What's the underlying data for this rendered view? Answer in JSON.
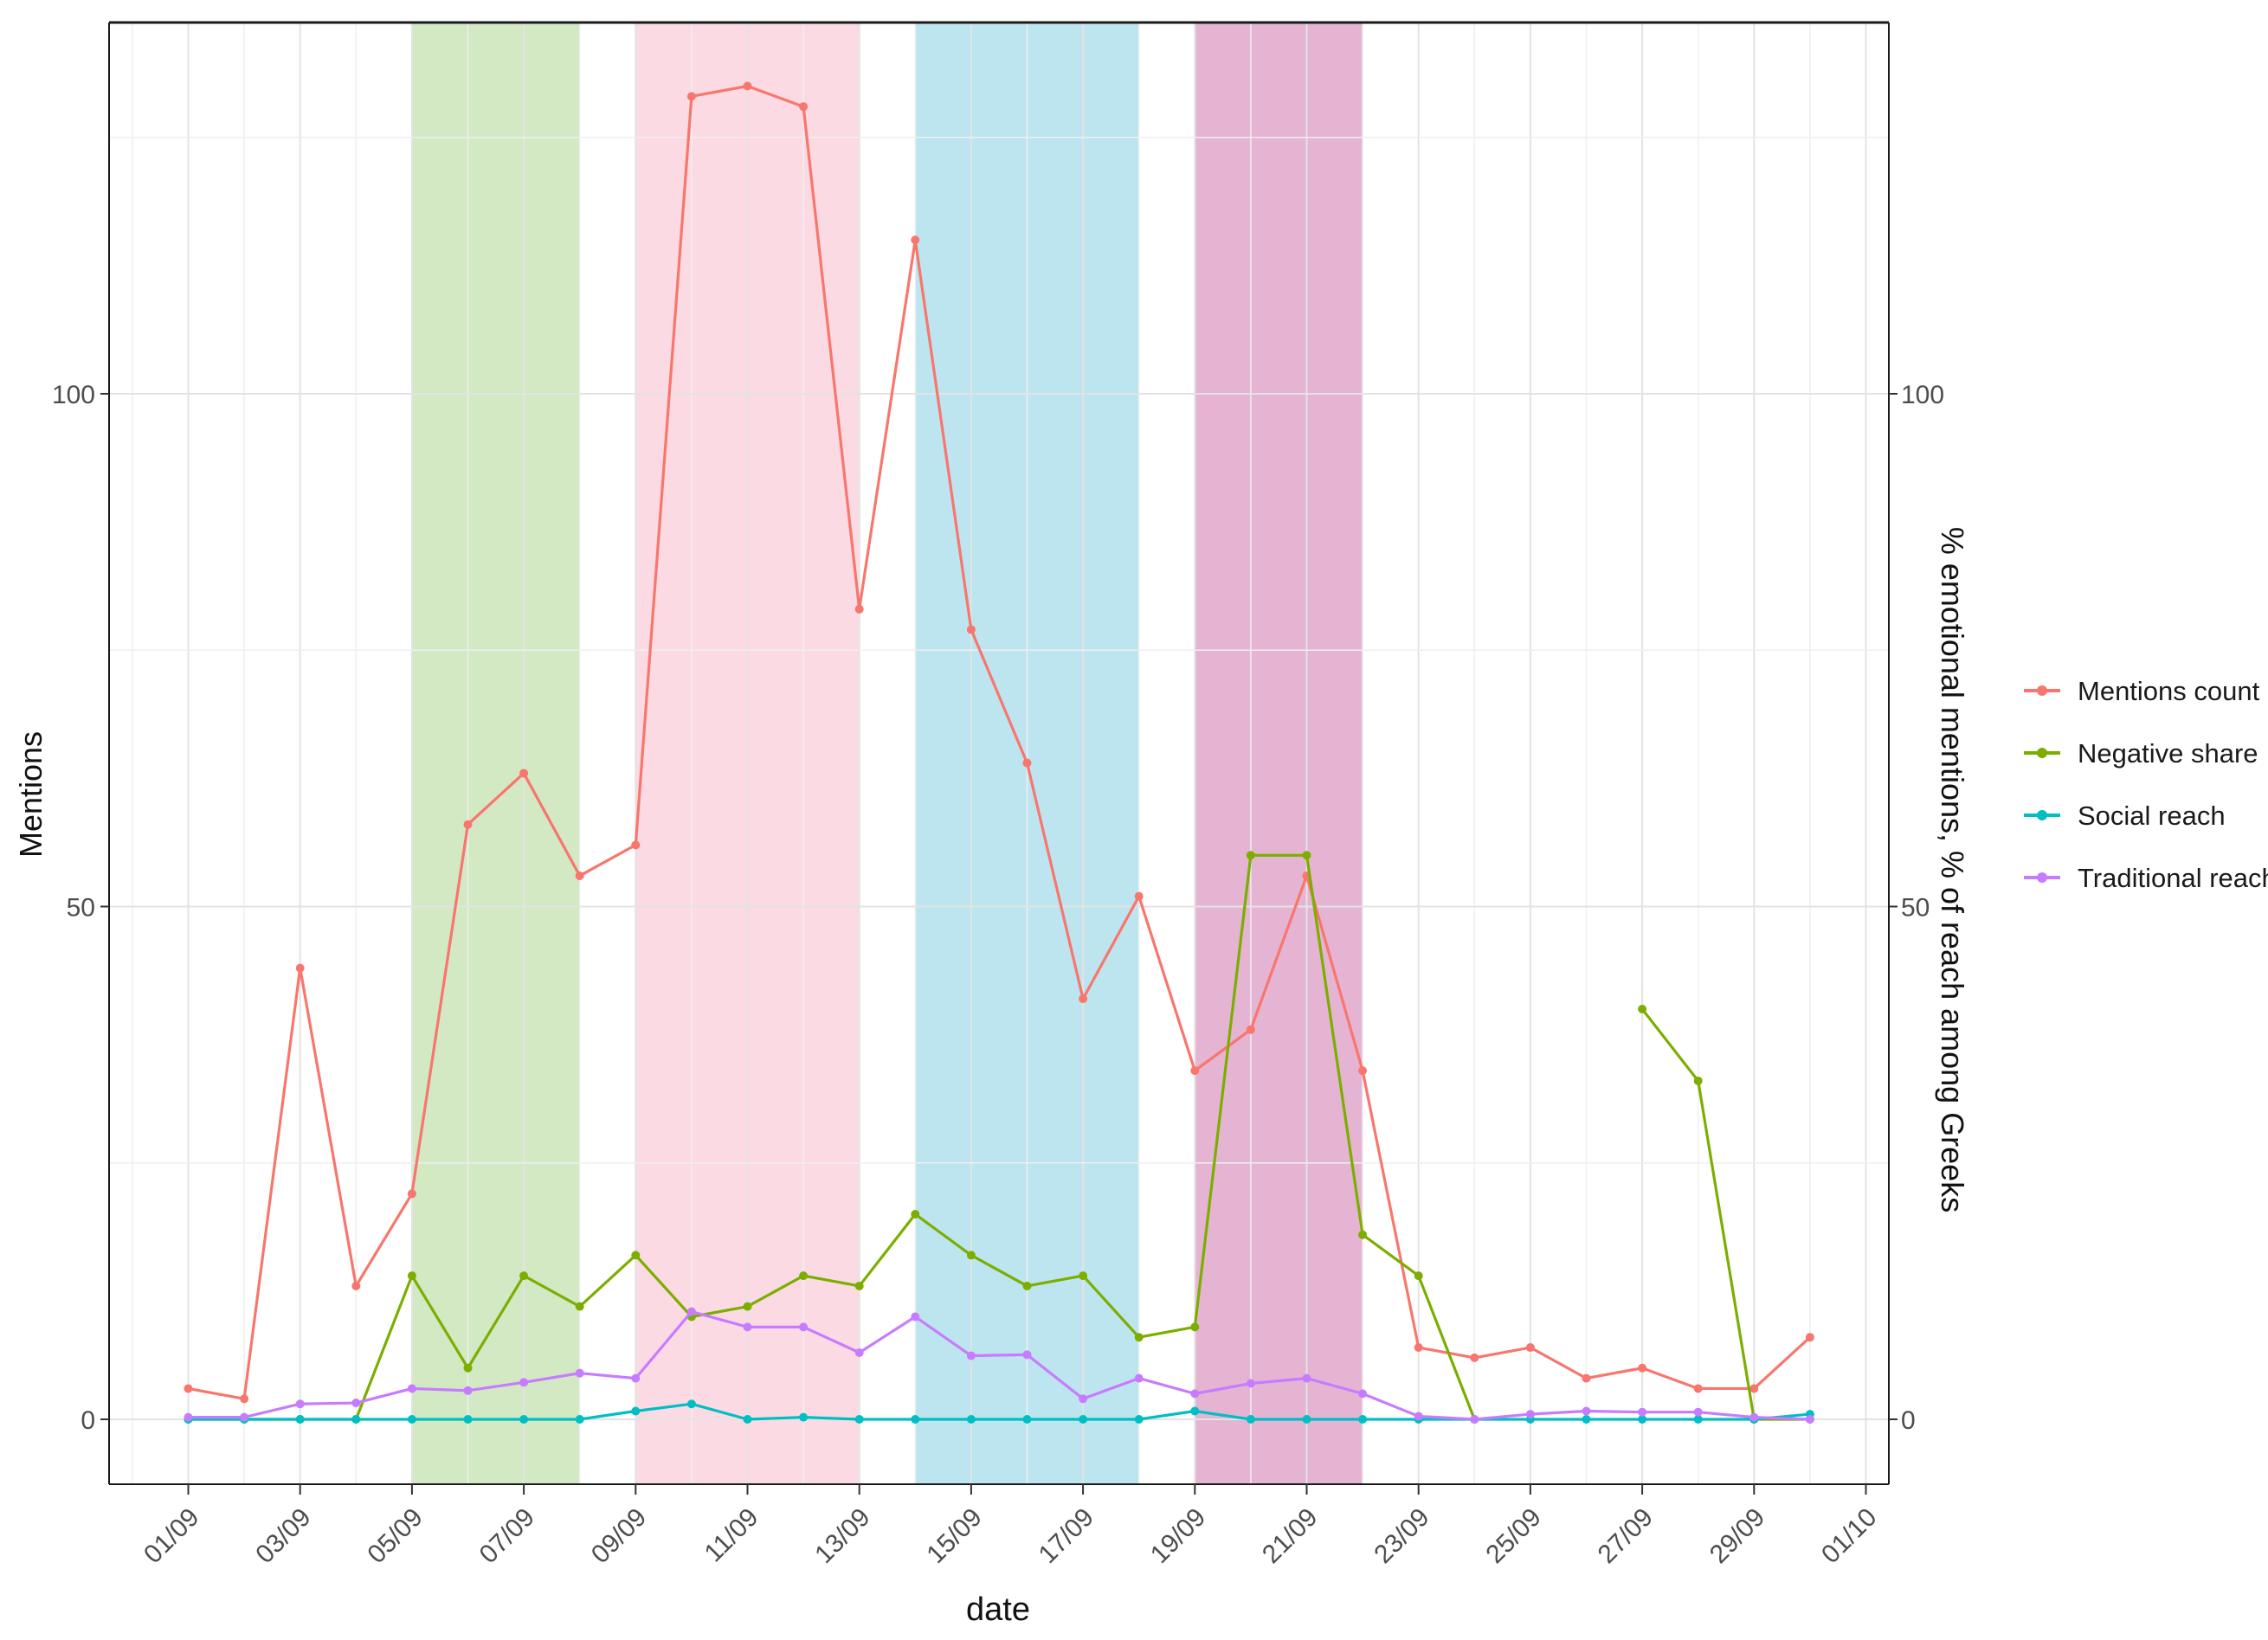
{
  "chart_data": {
    "type": "line",
    "xlabel": "date",
    "ylabel": "Mentions",
    "ylabel_right": "% emotional mentions, % of reach among Greeks",
    "x_tick_labels": [
      "01/09",
      "03/09",
      "05/09",
      "07/09",
      "09/09",
      "11/09",
      "13/09",
      "15/09",
      "17/09",
      "19/09",
      "21/09",
      "23/09",
      "25/09",
      "27/09",
      "29/09",
      "01/10"
    ],
    "y_ticks": [
      0,
      50,
      100
    ],
    "y_tick_labels": [
      "0",
      "50",
      "100"
    ],
    "ylim": [
      -6.5,
      135
    ],
    "xlim": [
      "31/08",
      "01/10"
    ],
    "grid": true,
    "legend_position": "right",
    "shaded_periods": [
      {
        "start": "05/09",
        "end": "08/09",
        "color": "#a6d48a",
        "opacity": 0.5
      },
      {
        "start": "09/09",
        "end": "13/09",
        "color": "#f7b6c8",
        "opacity": 0.5
      },
      {
        "start": "14/09",
        "end": "18/09",
        "color": "#7ccbe0",
        "opacity": 0.5
      },
      {
        "start": "19/09",
        "end": "22/09",
        "color": "#cc6aa8",
        "opacity": 0.5
      }
    ],
    "series": [
      {
        "name": "Mentions count",
        "color": "#f8766d",
        "values": [
          3,
          2,
          44,
          13,
          22,
          58,
          63,
          53,
          56,
          129,
          130,
          128,
          79,
          115,
          77,
          64,
          41,
          51,
          34,
          38,
          53,
          34,
          7,
          6,
          7,
          4,
          5,
          3,
          3,
          8
        ]
      },
      {
        "name": "Negative share",
        "color": "#7cae00",
        "values": [
          0,
          0,
          0,
          0,
          14,
          5,
          14,
          11,
          16,
          10,
          11,
          14,
          13,
          20,
          16,
          13,
          14,
          8,
          9,
          55,
          55,
          18,
          14,
          0,
          null,
          null,
          40,
          33,
          0,
          0
        ]
      },
      {
        "name": "Social reach",
        "color": "#00bfc4",
        "values": [
          0,
          0,
          0,
          0,
          0,
          0,
          0,
          0,
          0.8,
          1.5,
          0,
          0.2,
          0,
          0,
          0,
          0,
          0,
          0,
          0.8,
          0,
          0,
          0,
          0,
          0,
          0,
          0,
          0,
          0,
          0,
          0.5
        ]
      },
      {
        "name": "Traditional reach",
        "color": "#c77cff",
        "values": [
          0.2,
          0.2,
          1.5,
          1.6,
          3,
          2.8,
          3.6,
          4.5,
          4,
          10.5,
          9,
          9,
          6.5,
          10,
          6.2,
          6.3,
          2,
          4,
          2.5,
          3.5,
          4,
          2.5,
          0.3,
          0,
          0.5,
          0.8,
          0.7,
          0.7,
          0.2,
          0
        ]
      }
    ]
  }
}
